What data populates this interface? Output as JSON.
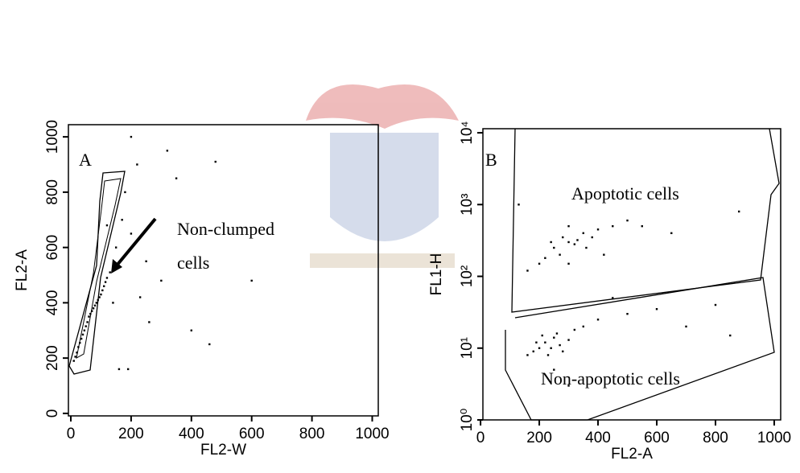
{
  "chart_data": [
    {
      "type": "scatter",
      "panel": "A",
      "xlabel": "FL2-W",
      "ylabel": "FL2-A",
      "annotation": [
        "Non-clumped",
        "cells"
      ],
      "xlim": [
        -8,
        1020
      ],
      "ylim": [
        -9,
        1044
      ],
      "xticks": [
        0,
        200,
        400,
        600,
        800,
        1000
      ],
      "yticks": [
        0,
        200,
        400,
        600,
        800,
        1000
      ],
      "color": "#000000",
      "x": [
        10,
        20,
        25,
        35,
        45,
        55,
        60,
        70,
        80,
        90,
        100,
        110,
        120,
        130,
        15,
        30,
        50,
        65,
        85,
        95,
        105,
        115,
        40,
        75,
        150,
        170,
        200,
        250,
        300,
        180,
        220,
        320,
        480,
        600,
        460,
        400,
        160,
        190,
        140,
        260,
        200,
        350,
        120,
        230
      ],
      "values": [
        190,
        220,
        240,
        270,
        300,
        330,
        350,
        370,
        390,
        410,
        430,
        460,
        490,
        510,
        205,
        255,
        315,
        360,
        400,
        420,
        445,
        475,
        285,
        380,
        600,
        700,
        650,
        550,
        480,
        800,
        900,
        950,
        910,
        480,
        250,
        300,
        160,
        160,
        400,
        330,
        1000,
        850,
        680,
        420
      ]
    },
    {
      "type": "scatter",
      "panel": "B",
      "xlabel": "FL2-A",
      "ylabel": "FL1-H",
      "annotation": [
        "Apoptotic cells",
        "Non-apoptotic cells"
      ],
      "xlim": [
        8,
        1022
      ],
      "ylim": [
        1,
        11400
      ],
      "log_scale": true,
      "xticks": [
        0,
        200,
        400,
        600,
        800,
        1000
      ],
      "yticks": [
        {
          "value": 1,
          "label": "10⁰"
        },
        {
          "value": 10,
          "label": "10¹"
        },
        {
          "value": 100,
          "label": "10²"
        },
        {
          "value": 1000,
          "label": "10³"
        },
        {
          "value": 10000,
          "label": "10⁴"
        }
      ],
      "color": "#000000",
      "x": [
        250,
        280,
        300,
        320,
        350,
        270,
        330,
        360,
        220,
        400,
        300,
        240,
        380,
        200,
        450,
        500,
        160,
        300,
        420,
        650,
        550,
        130,
        880,
        200,
        220,
        250,
        270,
        180,
        230,
        260,
        300,
        210,
        240,
        190,
        280,
        320,
        350,
        160,
        400,
        500,
        600,
        700,
        800,
        850,
        250,
        300,
        450
      ],
      "values": [
        250,
        350,
        300,
        280,
        400,
        200,
        320,
        250,
        180,
        450,
        500,
        300,
        350,
        150,
        500,
        600,
        120,
        150,
        200,
        400,
        500,
        1000,
        800,
        10,
        12,
        14,
        11,
        9,
        8,
        16,
        13,
        15,
        10,
        12,
        9,
        18,
        20,
        8,
        25,
        30,
        35,
        20,
        40,
        15,
        5,
        3,
        50
      ]
    }
  ]
}
